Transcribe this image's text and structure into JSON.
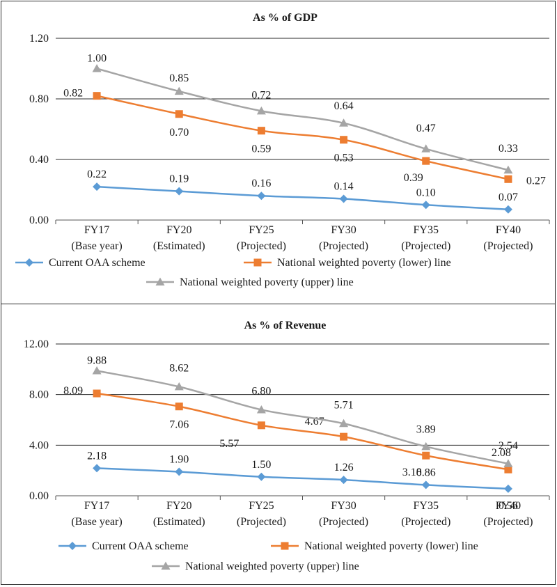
{
  "chart_data": [
    {
      "type": "line",
      "title": "As % of GDP",
      "categories": [
        [
          "FY17",
          "(Base year)"
        ],
        [
          "FY20",
          "(Estimated)"
        ],
        [
          "FY25",
          "(Projected)"
        ],
        [
          "FY30",
          "(Projected)"
        ],
        [
          "FY35",
          "(Projected)"
        ],
        [
          "FY40",
          "(Projected)"
        ]
      ],
      "ylim": [
        0,
        1.2
      ],
      "yticks": [
        "0.00",
        "0.40",
        "0.80",
        "1.20"
      ],
      "ytick_values": [
        0,
        0.4,
        0.8,
        1.2
      ],
      "grid": true,
      "legend_position": "bottom",
      "series": [
        {
          "name": "Current OAA scheme",
          "color": "#5b9bd5",
          "marker": "diamond",
          "values": [
            0.22,
            0.19,
            0.16,
            0.14,
            0.1,
            0.07
          ],
          "labels": [
            "0.22",
            "0.19",
            "0.16",
            "0.14",
            "0.10",
            "0.07"
          ]
        },
        {
          "name": "National weighted poverty (lower) line",
          "color": "#ed7d31",
          "marker": "square",
          "values": [
            0.82,
            0.7,
            0.59,
            0.53,
            0.39,
            0.27
          ],
          "labels": [
            "0.82",
            "0.70",
            "0.59",
            "0.53",
            "0.39",
            "0.27"
          ]
        },
        {
          "name": "National weighted poverty (upper) line",
          "color": "#a5a5a5",
          "marker": "triangle",
          "values": [
            1.0,
            0.85,
            0.72,
            0.64,
            0.47,
            0.33
          ],
          "labels": [
            "1.00",
            "0.85",
            "0.72",
            "0.64",
            "0.47",
            "0.33"
          ]
        }
      ]
    },
    {
      "type": "line",
      "title": "As % of Revenue",
      "categories": [
        [
          "FY17",
          "(Base year)"
        ],
        [
          "FY20",
          "(Estimated)"
        ],
        [
          "FY25",
          "(Projected)"
        ],
        [
          "FY30",
          "(Projected)"
        ],
        [
          "FY35",
          "(Projected)"
        ],
        [
          "FY40",
          "(Projected)"
        ]
      ],
      "ylim": [
        0,
        12
      ],
      "yticks": [
        "0.00",
        "4.00",
        "8.00",
        "12.00"
      ],
      "ytick_values": [
        0,
        4,
        8,
        12
      ],
      "grid": true,
      "legend_position": "bottom",
      "series": [
        {
          "name": "Current OAA scheme",
          "color": "#5b9bd5",
          "marker": "diamond",
          "values": [
            2.18,
            1.9,
            1.5,
            1.26,
            0.86,
            0.56
          ],
          "labels": [
            "2.18",
            "1.90",
            "1.50",
            "1.26",
            "0.86",
            "0.56"
          ]
        },
        {
          "name": "National weighted poverty (lower) line",
          "color": "#ed7d31",
          "marker": "square",
          "values": [
            8.09,
            7.06,
            5.57,
            4.67,
            3.18,
            2.08
          ],
          "labels": [
            "8.09",
            "7.06",
            "5.57",
            "4.67",
            "3.18",
            "2.08"
          ]
        },
        {
          "name": "National weighted poverty (upper) line",
          "color": "#a5a5a5",
          "marker": "triangle",
          "values": [
            9.88,
            8.62,
            6.8,
            5.71,
            3.89,
            2.54
          ],
          "labels": [
            "9.88",
            "8.62",
            "6.80",
            "5.71",
            "3.89",
            "2.54"
          ]
        }
      ]
    }
  ]
}
